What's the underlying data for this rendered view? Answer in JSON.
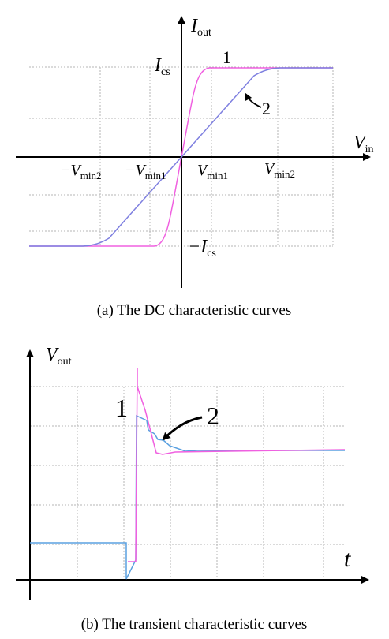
{
  "top_panel": {
    "caption": "(a) The DC characteristic curves",
    "y_axis_main": "I",
    "y_axis_sub": "out",
    "x_axis_main": "V",
    "x_axis_sub": "in",
    "ics_main": "I",
    "ics_sub": "cs",
    "neg_ics_main": "−I",
    "neg_ics_sub": "cs",
    "tick_neg_vmin2_main": "−V",
    "tick_neg_vmin2_sub": "min2",
    "tick_neg_vmin1_main": "−V",
    "tick_neg_vmin1_sub": "min1",
    "tick_vmin1_main": "V",
    "tick_vmin1_sub": "min1",
    "tick_vmin2_main": "V",
    "tick_vmin2_sub": "min2",
    "curve1_label": "1",
    "curve2_label": "2",
    "colors": {
      "curve1": "#f060e0",
      "curve2": "#7f80e0"
    }
  },
  "bottom_panel": {
    "caption": "(b) The transient characteristic curves",
    "y_axis_main": "V",
    "y_axis_sub": "out",
    "x_axis_label": "t",
    "curve1_label": "1",
    "curve2_label": "2",
    "colors": {
      "curve1": "#f060e0",
      "curve2": "#5aa0e0"
    }
  }
}
